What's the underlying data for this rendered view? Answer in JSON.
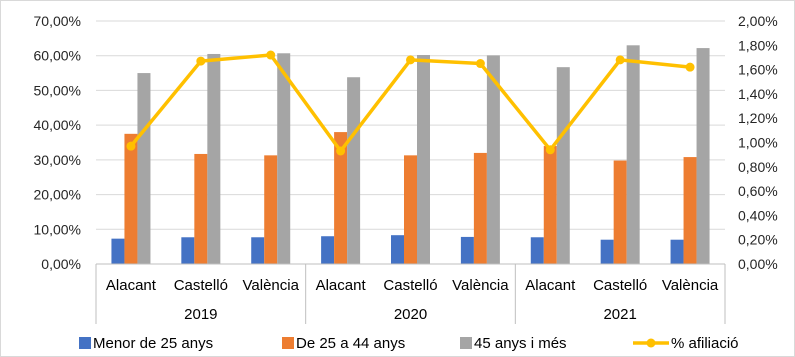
{
  "chart_data": {
    "type": "bar",
    "groups": [
      {
        "label": "2019",
        "categories": [
          "Alacant",
          "Castelló",
          "València"
        ]
      },
      {
        "label": "2020",
        "categories": [
          "Alacant",
          "Castelló",
          "València"
        ]
      },
      {
        "label": "2021",
        "categories": [
          "Alacant",
          "Castelló",
          "València"
        ]
      }
    ],
    "series": [
      {
        "name": "Menor de 25 anys",
        "axis": "left",
        "kind": "bar",
        "color": "#4472C4",
        "values": [
          7.3,
          7.7,
          7.7,
          8.0,
          8.3,
          7.8,
          7.7,
          7.0,
          7.0
        ]
      },
      {
        "name": "De 25 a 44 anys",
        "axis": "left",
        "kind": "bar",
        "color": "#ED7D31",
        "values": [
          37.5,
          31.7,
          31.3,
          38.0,
          31.3,
          32.0,
          34.0,
          29.8,
          30.8
        ]
      },
      {
        "name": "45 anys i més",
        "axis": "left",
        "kind": "bar",
        "color": "#A5A5A5",
        "values": [
          55.0,
          60.5,
          60.7,
          53.8,
          60.2,
          60.1,
          56.7,
          63.0,
          62.2
        ]
      },
      {
        "name": "% afiliació",
        "axis": "right",
        "kind": "line",
        "color": "#FFC000",
        "values": [
          0.97,
          1.67,
          1.72,
          0.93,
          1.68,
          1.65,
          0.94,
          1.68,
          1.62
        ]
      }
    ],
    "y_left": {
      "min": 0,
      "max": 70,
      "step": 10,
      "ticks": [
        "0,00%",
        "10,00%",
        "20,00%",
        "30,00%",
        "40,00%",
        "50,00%",
        "60,00%",
        "70,00%"
      ]
    },
    "y_right": {
      "min": 0,
      "max": 2,
      "step": 0.2,
      "ticks": [
        "0,00%",
        "0,20%",
        "0,40%",
        "0,60%",
        "0,80%",
        "1,00%",
        "1,20%",
        "1,40%",
        "1,60%",
        "1,80%",
        "2,00%"
      ]
    },
    "grid": true,
    "legend_position": "bottom"
  }
}
